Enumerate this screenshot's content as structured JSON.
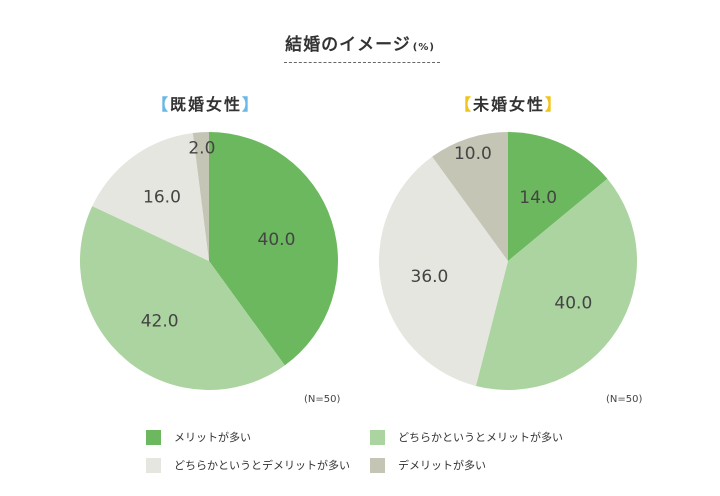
{
  "title": "結婚のイメージ",
  "title_unit": "(%)",
  "colors": {
    "merit_many": "#6cb85f",
    "both_merit": "#abd4a0",
    "both_demerit": "#e6e6e0",
    "demerit_many": "#c4c5b4"
  },
  "chart_data": [
    {
      "type": "pie",
      "title": "既婚女性",
      "title_open": "【",
      "title_close": "】",
      "note": "(N=50)",
      "slices": [
        {
          "label": "メリットが多い",
          "value": 40.0,
          "value_text": "40.0"
        },
        {
          "label": "どちらかというとメリットが多い",
          "value": 42.0,
          "value_text": "42.0"
        },
        {
          "label": "どちらかというとデメリットが多い",
          "value": 16.0,
          "value_text": "16.0"
        },
        {
          "label": "デメリットが多い",
          "value": 2.0,
          "value_text": "2.0"
        }
      ]
    },
    {
      "type": "pie",
      "title": "未婚女性",
      "title_open": "【",
      "title_close": "】",
      "note": "(N=50)",
      "slices": [
        {
          "label": "メリットが多い",
          "value": 14.0,
          "value_text": "14.0"
        },
        {
          "label": "どちらかというとメリットが多い",
          "value": 40.0,
          "value_text": "40.0"
        },
        {
          "label": "どちらかというとデメリットが多い",
          "value": 36.0,
          "value_text": "36.0"
        },
        {
          "label": "デメリットが多い",
          "value": 10.0,
          "value_text": "10.0"
        }
      ]
    }
  ],
  "legend": [
    {
      "label": "メリットが多い",
      "color": "#6cb85f"
    },
    {
      "label": "どちらかというとメリットが多い",
      "color": "#abd4a0"
    },
    {
      "label": "どちらかというとデメリットが多い",
      "color": "#e6e6e0"
    },
    {
      "label": "デメリットが多い",
      "color": "#c4c5b4"
    }
  ]
}
